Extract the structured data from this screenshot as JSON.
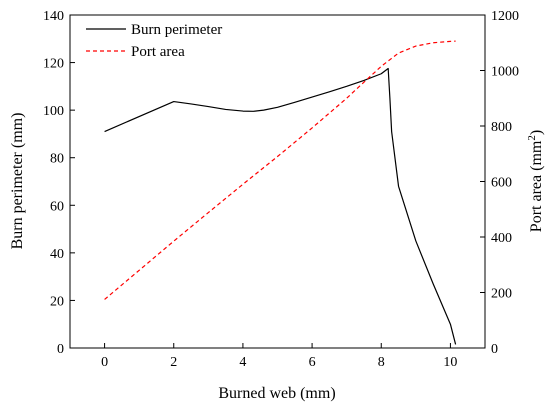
{
  "chart_data": {
    "type": "line",
    "xlabel": "Burned web (mm)",
    "ylabel_left": "Burn perimeter (mm)",
    "ylabel_right_main": "Port area (mm",
    "ylabel_right_sup": "2",
    "ylabel_right_end": ")",
    "xlim": [
      -1,
      11
    ],
    "ylim_left": [
      0,
      140
    ],
    "ylim_right": [
      0,
      1200
    ],
    "xticks": [
      0,
      2,
      4,
      6,
      8,
      10
    ],
    "yticks_left": [
      0,
      20,
      40,
      60,
      80,
      100,
      120,
      140
    ],
    "yticks_right": [
      0,
      200,
      400,
      600,
      800,
      1000,
      1200
    ],
    "grid": false,
    "legend_position": "top-left",
    "series": [
      {
        "name": "Burn perimeter",
        "axis": "left",
        "color": "#000000",
        "style": "solid",
        "x": [
          0,
          2,
          2.5,
          3.0,
          3.5,
          4.0,
          4.3,
          4.6,
          5.0,
          5.5,
          6.0,
          6.5,
          7.0,
          7.5,
          8.0,
          8.2,
          8.25,
          8.3,
          8.5,
          9.0,
          9.5,
          10.0,
          10.15
        ],
        "y": [
          91,
          103.6,
          102.6,
          101.5,
          100.3,
          99.6,
          99.5,
          100.0,
          101.2,
          103.3,
          105.5,
          107.7,
          110.0,
          112.5,
          115.3,
          117.5,
          105,
          91,
          68,
          45,
          27,
          10,
          1.5
        ]
      },
      {
        "name": "Port area",
        "axis": "right",
        "color": "#ff0000",
        "style": "dashed",
        "x": [
          0,
          1,
          2,
          3,
          4,
          5,
          6,
          7,
          7.5,
          8,
          8.5,
          9,
          9.5,
          10,
          10.15
        ],
        "y": [
          175,
          280,
          385,
          488,
          590,
          690,
          793,
          900,
          958,
          1015,
          1063,
          1088,
          1100,
          1105,
          1106
        ]
      }
    ]
  }
}
